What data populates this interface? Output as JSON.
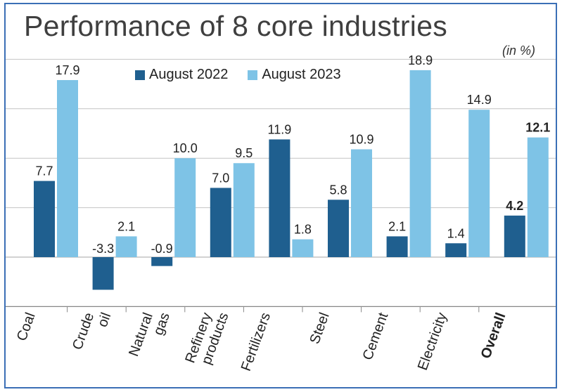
{
  "title": "Performance of 8 core industries",
  "unit_label": "(in %)",
  "colors": {
    "august_2022": "#1f5f8f",
    "august_2023": "#7ec3e6",
    "grid": "#c4c4c4",
    "frame": "#3b6fb6"
  },
  "chart_data": {
    "type": "bar",
    "title": "Performance of 8 core industries",
    "ylabel": "(in %)",
    "categories": [
      [
        "Coal"
      ],
      [
        "Crude",
        "oil"
      ],
      [
        "Natural",
        "gas"
      ],
      [
        "Refinery",
        "products"
      ],
      [
        "Fertilizers"
      ],
      [
        "Steel"
      ],
      [
        "Cement"
      ],
      [
        "Electricity"
      ],
      [
        "Overall"
      ]
    ],
    "series": [
      {
        "name": "August 2022",
        "values": [
          7.7,
          -3.3,
          -0.9,
          7.0,
          11.9,
          5.8,
          2.1,
          1.4,
          4.2
        ]
      },
      {
        "name": "August 2023",
        "values": [
          17.9,
          2.1,
          10.0,
          9.5,
          1.8,
          10.9,
          18.9,
          14.9,
          12.1
        ]
      }
    ],
    "value_labels": [
      [
        "7.7",
        "-3.3",
        "-0.9",
        "7.0",
        "11.9",
        "5.8",
        "2.1",
        "1.4",
        "4.2"
      ],
      [
        "17.9",
        "2.1",
        "10.0",
        "9.5",
        "1.8",
        "10.9",
        "18.9",
        "14.9",
        "12.1"
      ]
    ],
    "highlighted_category": "Overall",
    "ylim": [
      -5,
      20
    ],
    "grid": true,
    "legend_position": "top"
  }
}
